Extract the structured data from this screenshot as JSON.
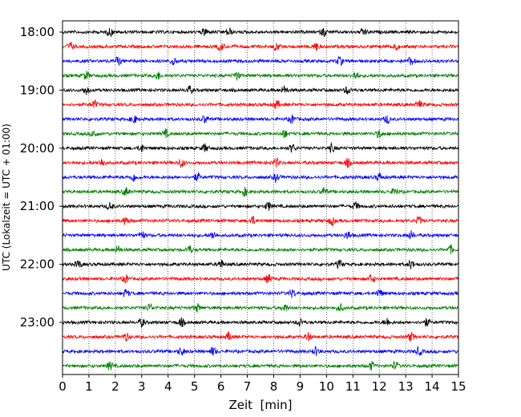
{
  "chart_data": {
    "type": "line",
    "title": "",
    "xlabel": "Zeit  [min]",
    "ylabel": "UTC (Lokalzeit = UTC + 01:00)",
    "xlim": [
      0,
      15
    ],
    "x_ticks": [
      0,
      1,
      2,
      3,
      4,
      5,
      6,
      7,
      8,
      9,
      10,
      11,
      12,
      13,
      14,
      15
    ],
    "y_ticks": [
      "18:00",
      "19:00",
      "20:00",
      "21:00",
      "22:00",
      "23:00"
    ],
    "grid": "vertical dotted",
    "line_colors": [
      "#000000",
      "#ff0000",
      "#0000ff",
      "#008000"
    ],
    "rows_start": "18:00",
    "row_interval_minutes": 15,
    "row_count": 24,
    "bursts": [
      [
        1.8,
        5.4,
        6.3,
        9.9,
        11.4
      ],
      [
        0.3,
        6.0,
        8.1,
        9.6,
        12.6
      ],
      [
        2.1,
        4.2,
        10.5,
        13.2
      ],
      [
        0.9,
        3.6,
        6.6,
        11.1
      ],
      [
        0.9,
        4.8,
        8.4,
        10.8
      ],
      [
        1.2,
        8.1,
        13.5
      ],
      [
        2.7,
        5.4,
        8.7,
        12.3
      ],
      [
        1.2,
        3.9,
        8.4,
        12.0
      ],
      [
        3.0,
        5.4,
        8.7,
        10.2
      ],
      [
        1.5,
        4.5,
        8.1,
        10.8
      ],
      [
        2.7,
        5.1,
        8.1,
        12.0
      ],
      [
        2.4,
        6.9,
        9.9,
        12.6
      ],
      [
        1.8,
        7.8,
        11.1
      ],
      [
        2.4,
        7.2,
        10.2,
        13.5
      ],
      [
        3.0,
        5.7,
        10.8,
        13.2
      ],
      [
        2.1,
        4.8,
        14.7
      ],
      [
        0.6,
        6.0,
        10.5,
        13.2
      ],
      [
        2.4,
        7.8,
        11.7
      ],
      [
        2.4,
        8.7,
        12.0
      ],
      [
        3.3,
        5.1,
        8.4,
        10.5
      ],
      [
        3.0,
        4.5,
        9.0,
        12.3,
        13.8
      ],
      [
        2.4,
        6.3,
        9.3,
        13.2
      ],
      [
        4.5,
        5.7,
        9.6,
        13.5
      ],
      [
        1.8,
        11.7,
        12.6
      ]
    ]
  }
}
